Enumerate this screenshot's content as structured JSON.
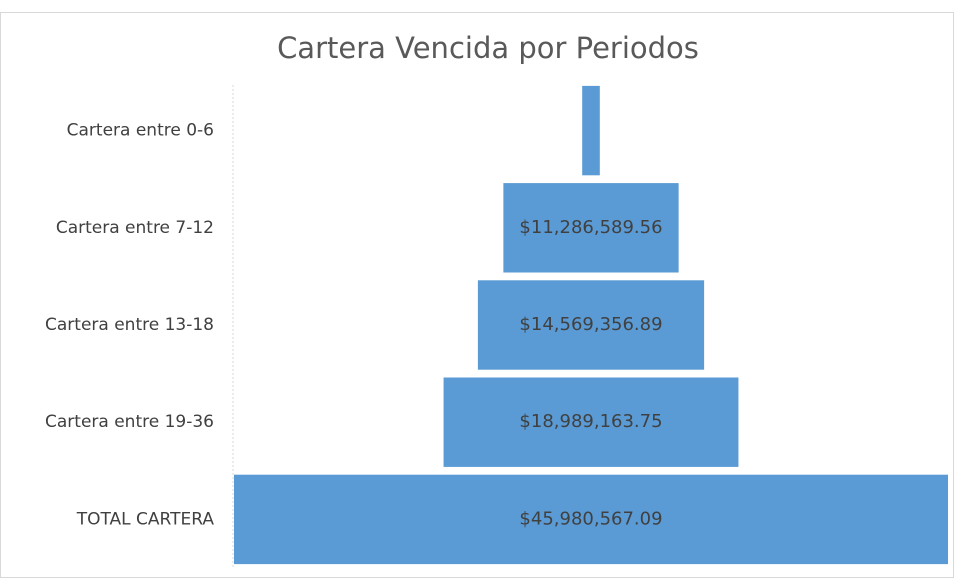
{
  "chart_data": {
    "type": "funnel",
    "title": "Cartera Vencida por Periodos",
    "categories": [
      "Cartera entre 0-6",
      "Cartera entre 7-12",
      "Cartera entre 13-18",
      "Cartera entre 19-36",
      "TOTAL CARTERA"
    ],
    "values": [
      1135457,
      11286589.56,
      14569356.89,
      18989163.75,
      45980567.09
    ],
    "value_labels": [
      null,
      "$11,286,589.56",
      "$14,569,356.89",
      "$18,989,163.75",
      "$45,980,567.09"
    ],
    "color": "#5b9bd5"
  }
}
